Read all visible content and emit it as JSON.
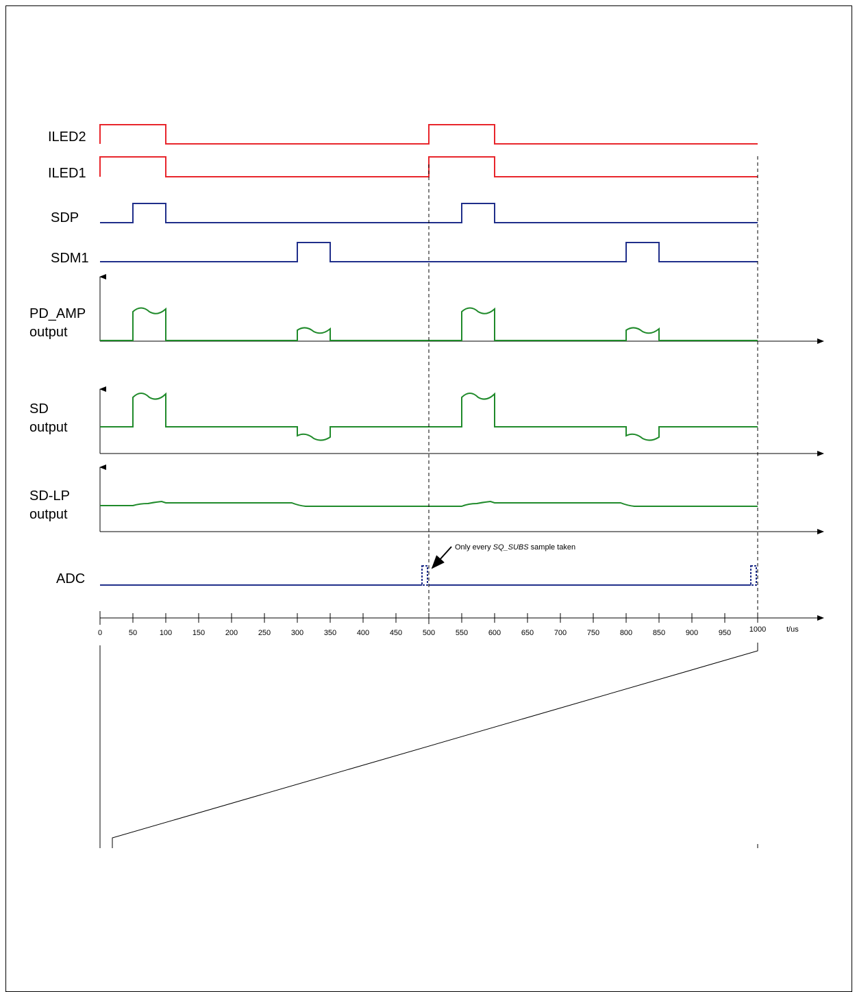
{
  "signals": {
    "iled2": {
      "label": "ILED2",
      "color": "#e8252b"
    },
    "iled1": {
      "label": "ILED1",
      "color": "#e8252b"
    },
    "sdp": {
      "label": "SDP",
      "color": "#1f2e8a"
    },
    "sdm1": {
      "label": "SDM1",
      "color": "#1f2e8a"
    },
    "pd_amp": {
      "label_line1": "PD_AMP",
      "label_line2": "output",
      "color": "#1f8a2a"
    },
    "sd": {
      "label_line1": "SD",
      "label_line2": "output",
      "color": "#1f8a2a"
    },
    "sd_lp": {
      "label_line1": "SD-LP",
      "label_line2": "output",
      "color": "#1f8a2a"
    },
    "adc": {
      "label": "ADC",
      "color": "#1f2e8a"
    }
  },
  "annotation": {
    "prefix": "Only every ",
    "italic": "SQ_SUBS",
    "suffix": " sample taken"
  },
  "time_axis": {
    "unit_label": "t/us",
    "ticks": [
      "0",
      "50",
      "100",
      "150",
      "200",
      "250",
      "300",
      "350",
      "400",
      "450",
      "500",
      "550",
      "600",
      "650",
      "700",
      "750",
      "800",
      "850",
      "900",
      "950",
      "1000"
    ]
  },
  "pulses_us": {
    "iled": [
      [
        0,
        100
      ],
      [
        500,
        600
      ]
    ],
    "sdp": [
      [
        50,
        100
      ],
      [
        550,
        600
      ]
    ],
    "sdm1": [
      [
        300,
        350
      ],
      [
        800,
        850
      ]
    ],
    "adc_samples": [
      495,
      995
    ]
  }
}
